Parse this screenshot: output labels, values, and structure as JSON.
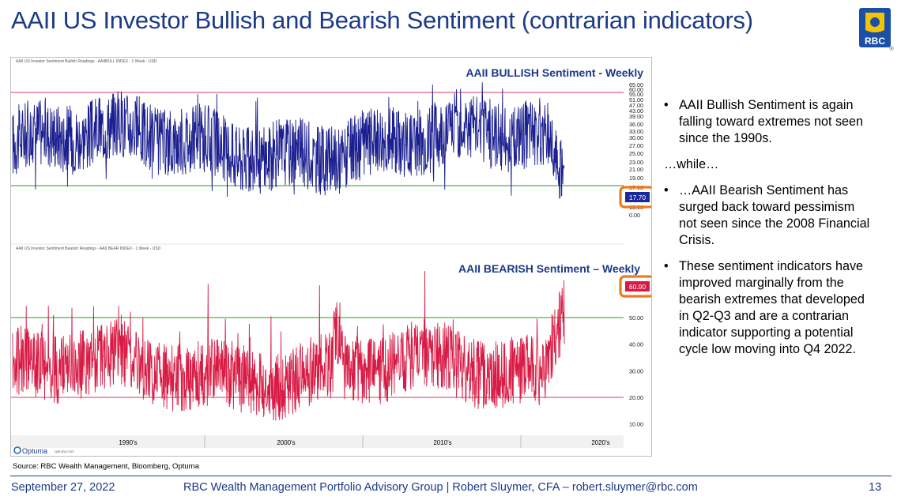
{
  "title": "AAII US Investor Bullish and Bearish Sentiment (contrarian indicators)",
  "logo": {
    "text": "RBC",
    "registered": "®"
  },
  "chart_data": [
    {
      "type": "line",
      "title": "AAII BULLISH Sentiment - Weekly",
      "subtitle": "AAII US Investor Sentiment Bullish Readings - AAIIBULL INDEX - 1 Week - USD",
      "y_ticks": [
        "65.00",
        "60.00",
        "55.00",
        "51.00",
        "47.00",
        "43.00",
        "39.00",
        "36.00",
        "33.00",
        "30.00",
        "27.00",
        "25.00",
        "23.00",
        "21.00",
        "19.00",
        "17.00",
        "15.00",
        "13.00",
        "0.00"
      ],
      "hlines": [
        {
          "value": 60,
          "color": "#e0607a"
        },
        {
          "value": 20,
          "color": "#4caf50"
        }
      ],
      "last_value": "17.70",
      "last_value_color": "#1b2a9a",
      "series_color": "#1b1f8f"
    },
    {
      "type": "line",
      "title": "AAII BEARISH Sentiment – Weekly",
      "subtitle": "AAII US Investor Sentiment Bearish Readings - AAII BEAR INDEX - 1 Week - USD",
      "y_ticks": [
        "50.00",
        "40.00",
        "30.00",
        "20.00",
        "10.00"
      ],
      "hlines": [
        {
          "value": 50,
          "color": "#4caf50"
        },
        {
          "value": 20,
          "color": "#e0607a"
        }
      ],
      "last_value": "60.90",
      "last_value_color": "#d81b45",
      "series_color": "#d81b45"
    }
  ],
  "x_axis_labels": [
    "1990's",
    "2000's",
    "2010's",
    "2020's"
  ],
  "vendor": {
    "name": "Optuma",
    "url": "optuma.com"
  },
  "source": "Source: RBC Wealth Management, Bloomberg, Optuma",
  "bullets": [
    "AAII Bullish Sentiment is again falling toward extremes not seen since the 1990s.",
    "…AAII Bearish Sentiment has surged back toward pessimism not seen since the 2008 Financial Crisis.",
    "These sentiment indicators have improved marginally from the bearish extremes that developed in Q2-Q3 and are a contrarian indicator supporting a potential cycle low moving into Q4 2022."
  ],
  "bullet_symbol": "•",
  "while_text": "…while…",
  "footer": {
    "date": "September 27, 2022",
    "center": "RBC Wealth Management Portfolio Advisory Group  |  Robert Sluymer, CFA – robert.sluymer@rbc.com",
    "page": "13"
  }
}
